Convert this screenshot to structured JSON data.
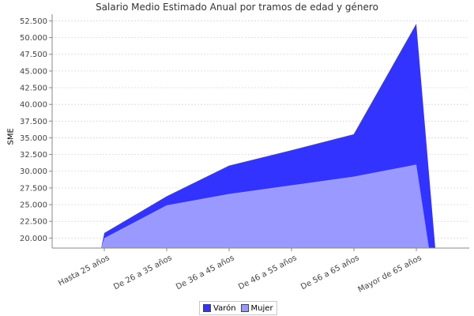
{
  "chart_data": {
    "type": "area",
    "title": "Salario Medio Estimado Anual por tramos de edad y género",
    "ylabel": "SME",
    "xlabel": "",
    "categories": [
      "Hasta 25 años",
      "De 26 a 35 años",
      "De 36 a 45 años",
      "De 46 a 55 años",
      "De 56 a 65 años",
      "Mayor de 65 años"
    ],
    "series": [
      {
        "name": "Varón",
        "color": "#3333ff",
        "values": [
          20700,
          26200,
          30800,
          33100,
          35500,
          52000
        ]
      },
      {
        "name": "Mujer",
        "color": "#9999ff",
        "values": [
          20000,
          24900,
          26600,
          27900,
          29200,
          31000
        ]
      }
    ],
    "y_ticks": [
      "20.000",
      "22.500",
      "25.000",
      "27.500",
      "30.000",
      "32.500",
      "35.000",
      "37.500",
      "40.000",
      "42.500",
      "45.000",
      "47.500",
      "50.000",
      "52.500"
    ],
    "y_tick_values": [
      20000,
      22500,
      25000,
      27500,
      30000,
      32500,
      35000,
      37500,
      40000,
      42500,
      45000,
      47500,
      50000,
      52500
    ],
    "ylim": [
      18500,
      53500
    ],
    "grid": true,
    "legend_position": "bottom-center"
  }
}
